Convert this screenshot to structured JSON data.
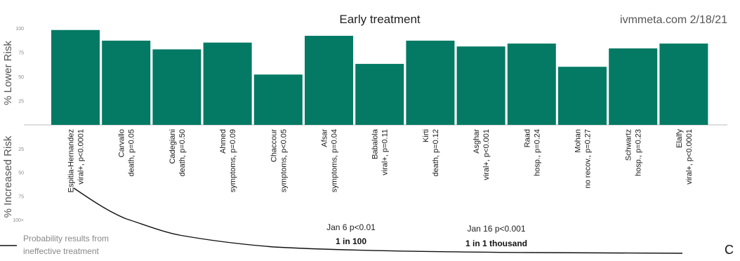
{
  "chart_data": {
    "type": "bar",
    "title": "Early treatment",
    "source": "ivmmeta.com 2/18/21",
    "ylabel_top": "% Lower Risk",
    "ylabel_bottom": "% Increased Risk",
    "yticks_top": [
      "100",
      "75",
      "50",
      "25"
    ],
    "yticks_bottom": [
      "25",
      "50",
      "75",
      "100+"
    ],
    "ylim": [
      -100,
      100
    ],
    "bar_color": "#047a64",
    "categories": [
      {
        "name": "Espitia-Hernandez",
        "detail": "viral+, p<0.0001",
        "value": 98
      },
      {
        "name": "Carvallo",
        "detail": "death, p=0.05",
        "value": 87
      },
      {
        "name": "Cadegiani",
        "detail": "death, p=0.50",
        "value": 78
      },
      {
        "name": "Ahmed",
        "detail": "symptoms, p=0.09",
        "value": 85
      },
      {
        "name": "Chaccour",
        "detail": "symptoms, p<0.05",
        "value": 52
      },
      {
        "name": "Afsar",
        "detail": "symptoms, p=0.04",
        "value": 92
      },
      {
        "name": "Babalola",
        "detail": "viral+, p=0.11",
        "value": 63
      },
      {
        "name": "Kirti",
        "detail": "death, p=0.12",
        "value": 87
      },
      {
        "name": "Asghar",
        "detail": "viral+, p<0.001",
        "value": 81
      },
      {
        "name": "Raad",
        "detail": "hosp., p=0.24",
        "value": 84
      },
      {
        "name": "Mohan",
        "detail": "no recov., p=0.27",
        "value": 60
      },
      {
        "name": "Schwartz",
        "detail": "hosp., p=0.23",
        "value": 79
      },
      {
        "name": "Elalfy",
        "detail": "viral+, p<0.0001",
        "value": 84
      }
    ],
    "probability_label": [
      "Probability results from",
      "ineffective treatment"
    ],
    "annotations": [
      {
        "date": "Jan 6 p<0.01",
        "value": "1 in 100"
      },
      {
        "date": "Jan 16 p<0.001",
        "value": "1 in 1 thousand"
      }
    ],
    "corner_label": "C"
  }
}
